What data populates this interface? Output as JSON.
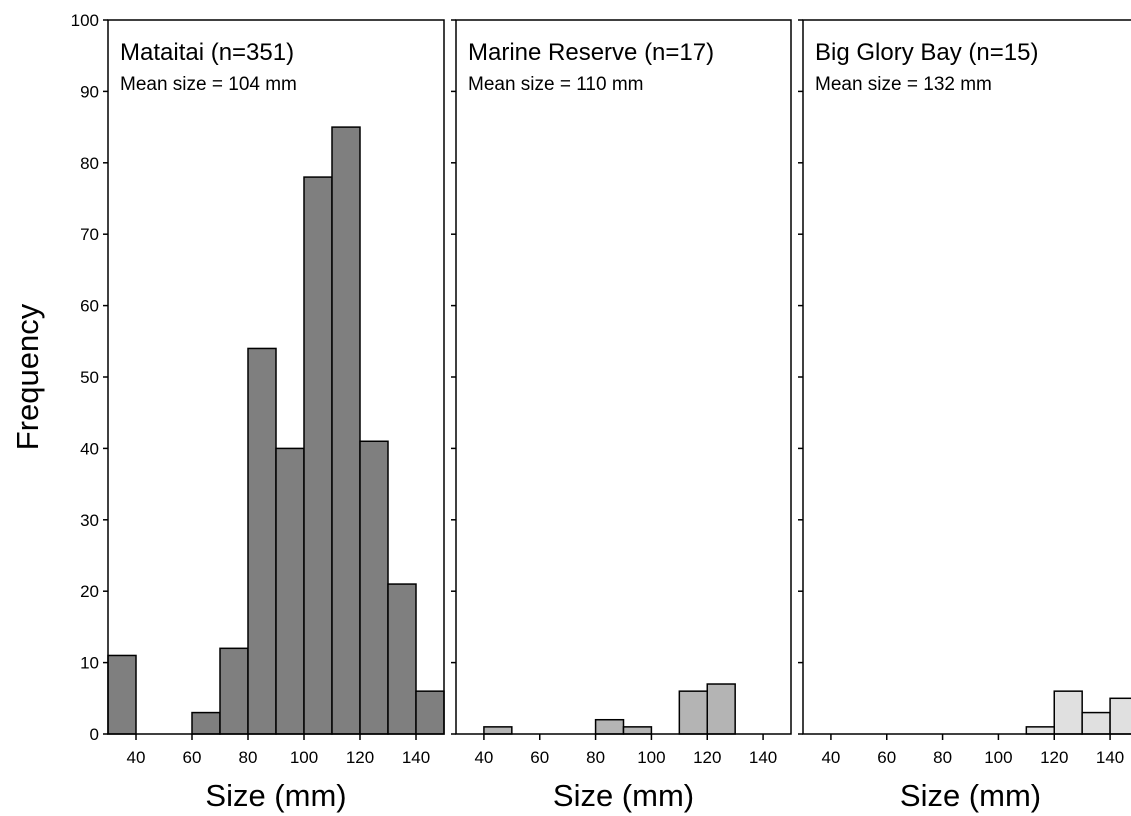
{
  "chart_data": {
    "type": "bar",
    "ylabel": "Frequency",
    "ylim": [
      0,
      100
    ],
    "yticks": [
      0,
      10,
      20,
      30,
      40,
      50,
      60,
      70,
      80,
      90,
      100
    ],
    "bin_width": 10,
    "colors": {
      "panel1": "#7f7f7f",
      "panel2": "#b4b4b4",
      "panel3": "#e0e0e0",
      "edge": "#000000"
    },
    "panels": [
      {
        "title": "Mataitai (n=351)",
        "subtitle": "Mean size = 104 mm",
        "xlabel": "Size (mm)",
        "xlim": [
          30,
          150
        ],
        "xticks": [
          40,
          60,
          80,
          100,
          120,
          140
        ],
        "bins": [
          30,
          40,
          50,
          60,
          70,
          80,
          90,
          100,
          110,
          120,
          130,
          140
        ],
        "values": [
          11,
          0,
          0,
          3,
          12,
          54,
          40,
          78,
          85,
          41,
          21,
          6
        ]
      },
      {
        "title": "Marine Reserve (n=17)",
        "subtitle": "Mean size = 110 mm",
        "xlabel": "Size (mm)",
        "xlim": [
          30,
          150
        ],
        "xticks": [
          40,
          60,
          80,
          100,
          120,
          140
        ],
        "bins": [
          40,
          50,
          60,
          70,
          80,
          90,
          100,
          110,
          120
        ],
        "values": [
          1,
          0,
          0,
          0,
          2,
          1,
          0,
          6,
          7
        ]
      },
      {
        "title": "Big Glory Bay (n=15)",
        "subtitle": "Mean size = 132 mm",
        "xlabel": "Size (mm)",
        "xlim": [
          30,
          150
        ],
        "xticks": [
          40,
          60,
          80,
          100,
          120,
          140
        ],
        "bins": [
          110,
          120,
          130,
          140
        ],
        "values": [
          1,
          6,
          3,
          5
        ]
      }
    ]
  }
}
